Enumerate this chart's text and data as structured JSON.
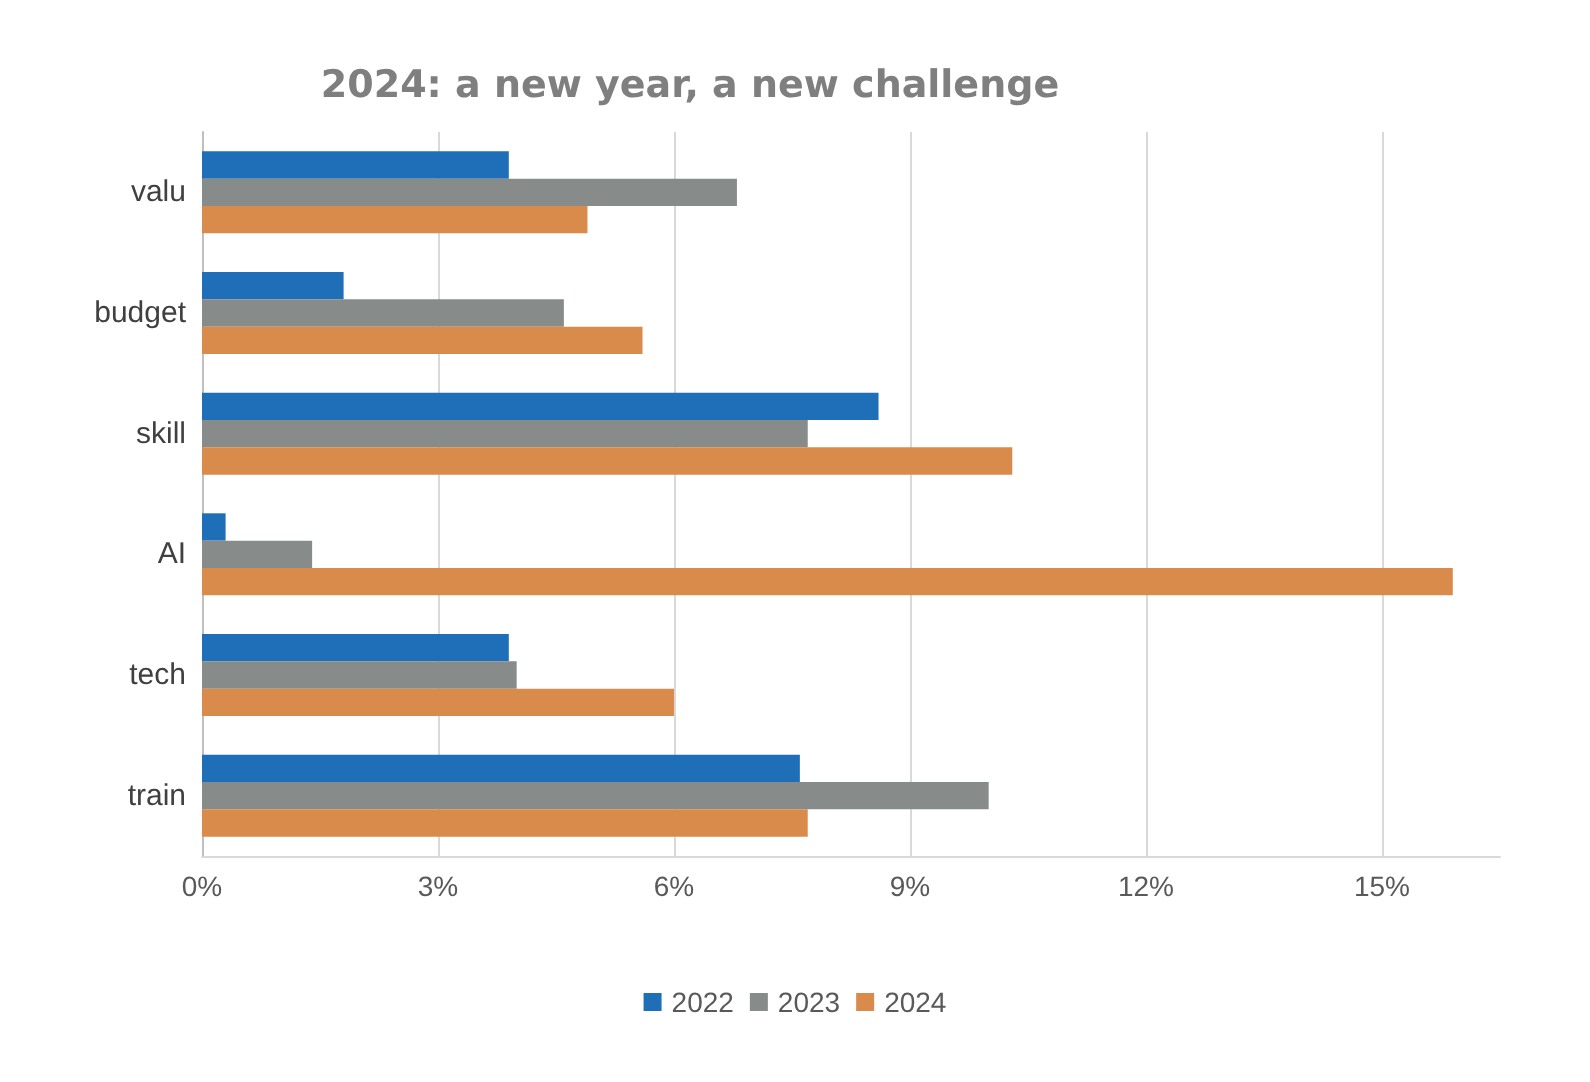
{
  "chart_data": {
    "type": "bar",
    "orientation": "horizontal",
    "title": "2024: a new year, a new challenge",
    "categories": [
      "valu",
      "budget",
      "skill",
      "AI",
      "tech",
      "train"
    ],
    "series": [
      {
        "name": "2022",
        "color": "#1f6fb8",
        "values": [
          3.9,
          1.8,
          8.6,
          0.3,
          3.9,
          7.6
        ]
      },
      {
        "name": "2023",
        "color": "#878b8a",
        "values": [
          6.8,
          4.6,
          7.7,
          1.4,
          4.0,
          10.0
        ]
      },
      {
        "name": "2024",
        "color": "#d98b4c",
        "values": [
          4.9,
          5.6,
          10.3,
          15.9,
          6.0,
          7.7
        ]
      }
    ],
    "xlim": [
      0,
      16.5
    ],
    "xticks": [
      {
        "value": 0,
        "label": "0%"
      },
      {
        "value": 3,
        "label": "3%"
      },
      {
        "value": 6,
        "label": "6%"
      },
      {
        "value": 9,
        "label": "9%"
      },
      {
        "value": 12,
        "label": "12%"
      },
      {
        "value": 15,
        "label": "15%"
      }
    ],
    "grid": "x",
    "legend": "bottom"
  }
}
